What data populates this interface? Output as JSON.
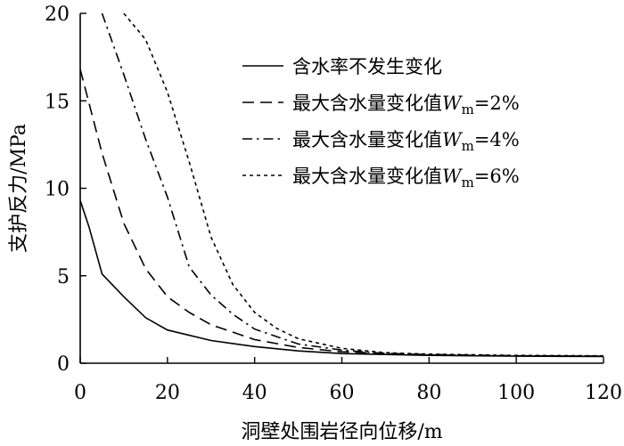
{
  "chart_data": {
    "type": "line",
    "title": "",
    "xlabel": "洞壁处围岩径向位移/m",
    "ylabel": "支护反力/MPa",
    "xlim": [
      0,
      120
    ],
    "ylim": [
      0,
      20
    ],
    "xticks": [
      0,
      20,
      40,
      60,
      80,
      100,
      120
    ],
    "yticks": [
      0,
      5,
      10,
      15,
      20
    ],
    "grid": false,
    "legend_position": "top-right",
    "series": [
      {
        "name": "含水率不发生变化",
        "line_style": "solid",
        "points": [
          [
            0,
            9.3
          ],
          [
            2,
            7.8
          ],
          [
            5,
            5.1
          ],
          [
            10,
            3.8
          ],
          [
            15,
            2.6
          ],
          [
            20,
            1.9
          ],
          [
            30,
            1.3
          ],
          [
            40,
            0.95
          ],
          [
            50,
            0.7
          ],
          [
            60,
            0.55
          ],
          [
            80,
            0.45
          ],
          [
            100,
            0.4
          ],
          [
            120,
            0.38
          ]
        ]
      },
      {
        "name": "最大含水量变化值Wm=2%",
        "line_style": "dashed",
        "points": [
          [
            0,
            16.8
          ],
          [
            5,
            12.0
          ],
          [
            10,
            8.0
          ],
          [
            15,
            5.4
          ],
          [
            20,
            3.8
          ],
          [
            25,
            2.9
          ],
          [
            30,
            2.2
          ],
          [
            40,
            1.35
          ],
          [
            50,
            0.9
          ],
          [
            60,
            0.65
          ],
          [
            80,
            0.48
          ],
          [
            100,
            0.42
          ],
          [
            120,
            0.4
          ]
        ]
      },
      {
        "name": "最大含水量变化值Wm=4%",
        "line_style": "dash-dot",
        "points": [
          [
            5,
            20.0
          ],
          [
            10,
            16.5
          ],
          [
            15,
            12.8
          ],
          [
            20,
            9.5
          ],
          [
            25,
            5.5
          ],
          [
            30,
            3.9
          ],
          [
            35,
            2.8
          ],
          [
            40,
            1.95
          ],
          [
            50,
            1.1
          ],
          [
            60,
            0.75
          ],
          [
            70,
            0.55
          ],
          [
            80,
            0.5
          ],
          [
            100,
            0.43
          ],
          [
            120,
            0.4
          ]
        ]
      },
      {
        "name": "最大含水量变化值Wm=6%",
        "line_style": "dotted",
        "points": [
          [
            10,
            20.0
          ],
          [
            15,
            18.5
          ],
          [
            20,
            15.5
          ],
          [
            25,
            11.5
          ],
          [
            30,
            7.2
          ],
          [
            35,
            4.5
          ],
          [
            40,
            2.9
          ],
          [
            45,
            2.0
          ],
          [
            50,
            1.4
          ],
          [
            60,
            0.85
          ],
          [
            70,
            0.6
          ],
          [
            80,
            0.52
          ],
          [
            100,
            0.45
          ],
          [
            120,
            0.42
          ]
        ]
      }
    ]
  }
}
